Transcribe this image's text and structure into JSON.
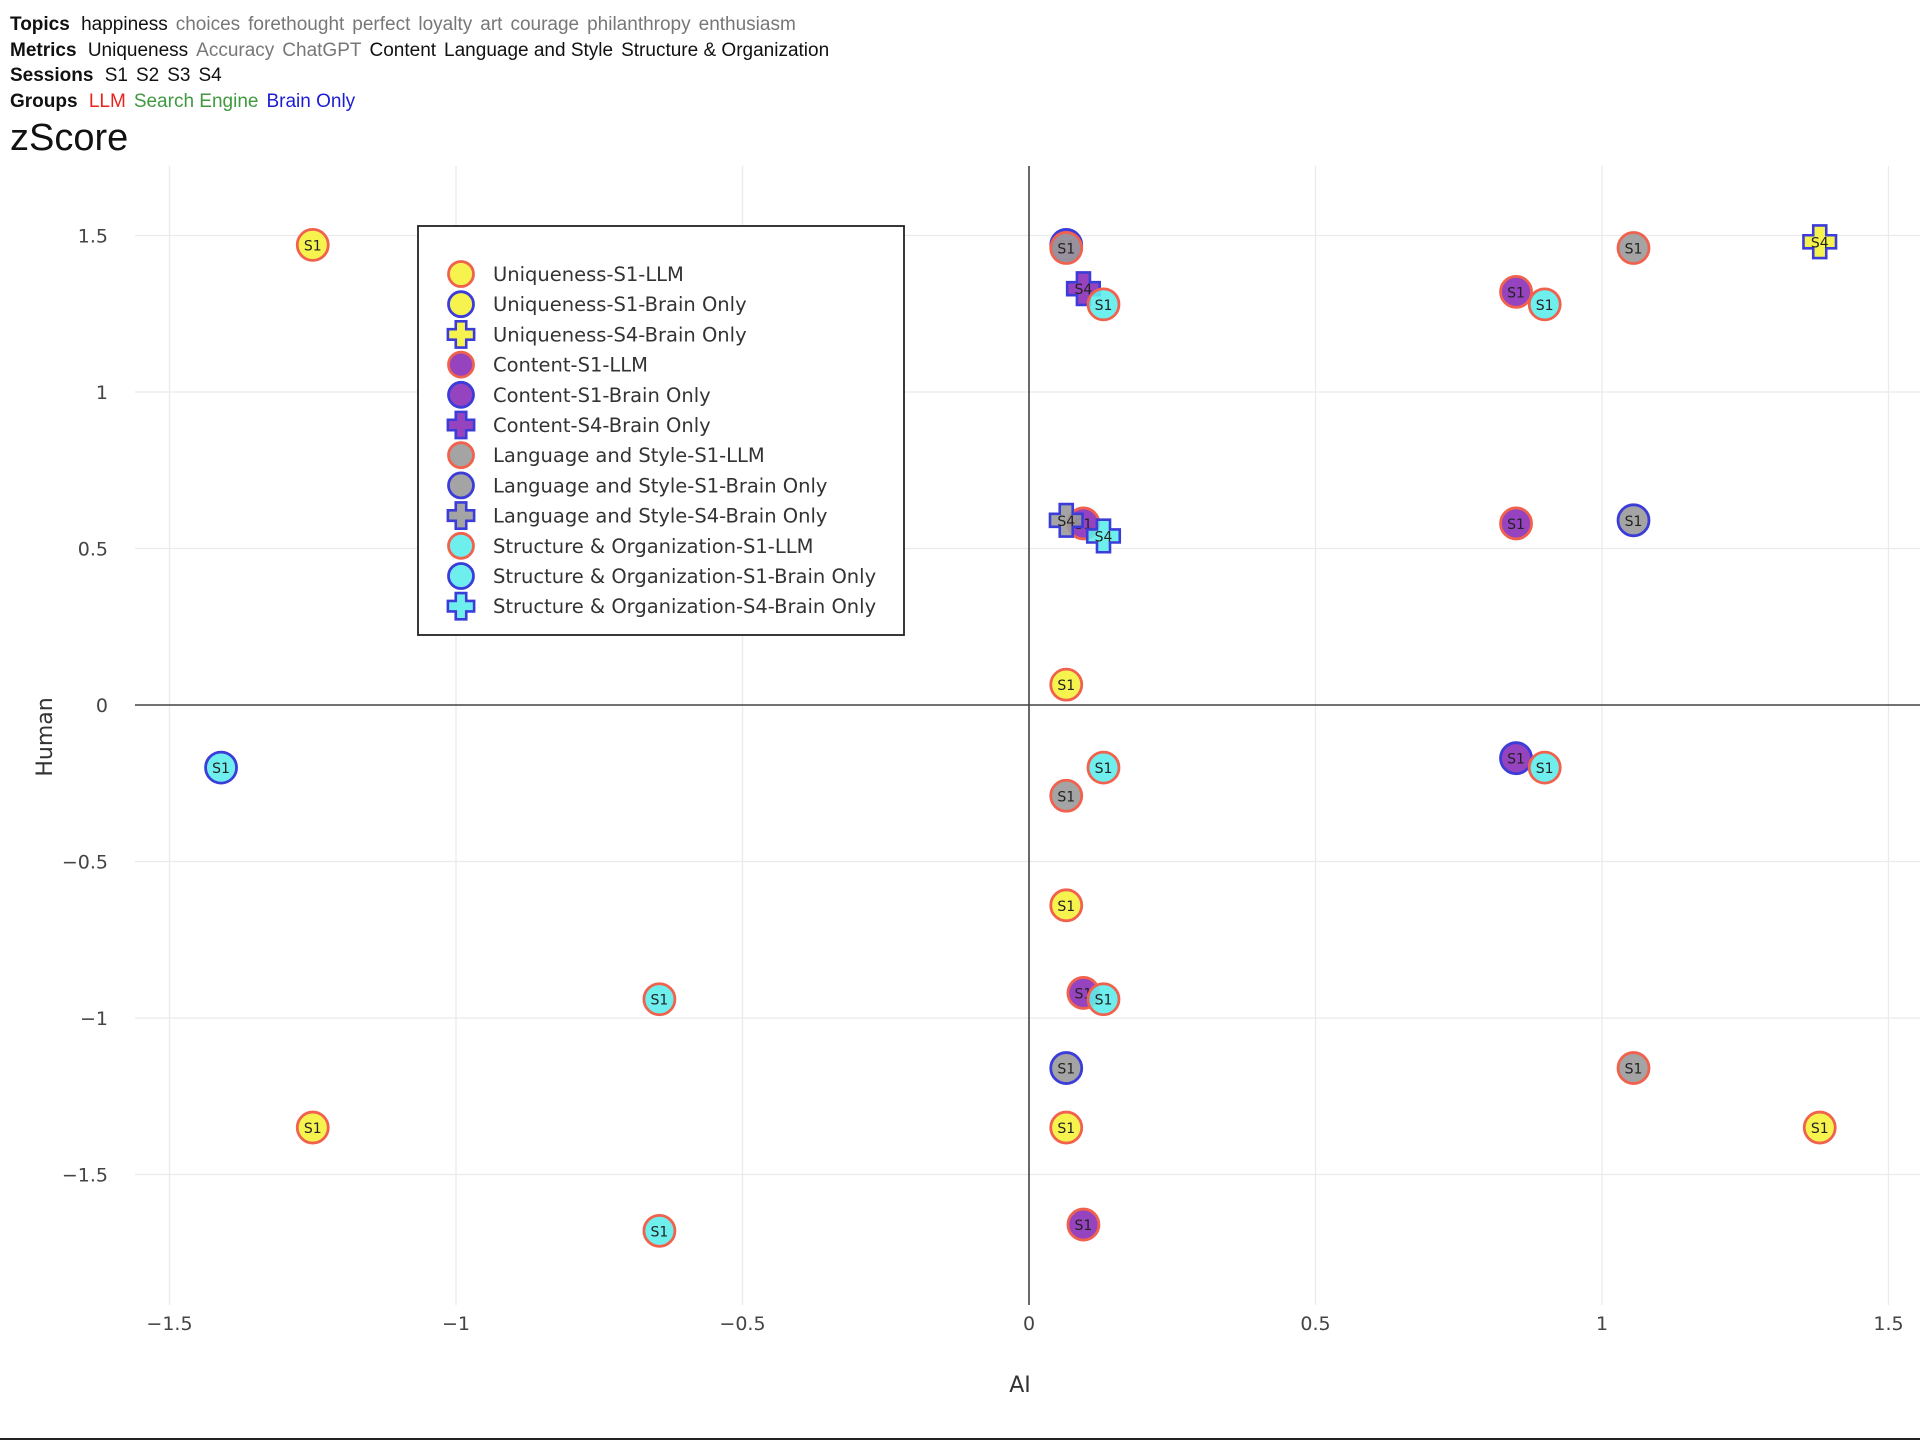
{
  "filters": {
    "topics": {
      "label": "Topics",
      "items": [
        {
          "text": "happiness",
          "active": true
        },
        {
          "text": "choices",
          "active": false
        },
        {
          "text": "forethought",
          "active": false
        },
        {
          "text": "perfect",
          "active": false
        },
        {
          "text": "loyalty",
          "active": false
        },
        {
          "text": "art",
          "active": false
        },
        {
          "text": "courage",
          "active": false
        },
        {
          "text": "philanthropy",
          "active": false
        },
        {
          "text": "enthusiasm",
          "active": false
        }
      ]
    },
    "metrics": {
      "label": "Metrics",
      "items": [
        {
          "text": "Uniqueness",
          "active": true
        },
        {
          "text": "Accuracy",
          "active": false
        },
        {
          "text": "ChatGPT",
          "active": false
        },
        {
          "text": "Content",
          "active": true
        },
        {
          "text": "Language and Style",
          "active": true
        },
        {
          "text": "Structure & Organization",
          "active": true
        }
      ]
    },
    "sessions": {
      "label": "Sessions",
      "items": [
        {
          "text": "S1",
          "active": true
        },
        {
          "text": "S2",
          "active": true
        },
        {
          "text": "S3",
          "active": true
        },
        {
          "text": "S4",
          "active": true
        }
      ]
    },
    "groups": {
      "label": "Groups",
      "items": [
        {
          "text": "LLM",
          "color": "#e8251c"
        },
        {
          "text": "Search Engine",
          "color": "#3f9a3f"
        },
        {
          "text": "Brain Only",
          "color": "#1c1cd4"
        }
      ]
    }
  },
  "chart_data": {
    "type": "scatter",
    "title": "zScore",
    "xlabel": "AI",
    "ylabel": "Human",
    "xlim": [
      -1.5,
      1.5
    ],
    "ylim": [
      -1.5,
      1.5
    ],
    "xticks": [
      "−1.5",
      "−1",
      "−0.5",
      "0",
      "0.5",
      "1",
      "1.5"
    ],
    "yticks": [
      "1.5",
      "1",
      "0.5",
      "0",
      "−0.5",
      "−1",
      "−1.5"
    ],
    "grid": true,
    "legend_position": "top-left",
    "metric_colors": {
      "Uniqueness": "#f5f23c",
      "Content": "#8b2fb8",
      "Language and Style": "#9a9a9a",
      "Structure & Organization": "#5fecec"
    },
    "group_outline_colors": {
      "LLM": "#f0624d",
      "Brain Only": "#3c3cd8"
    },
    "series": [
      {
        "name": "Uniqueness-S1-LLM",
        "metric": "Uniqueness",
        "group": "LLM",
        "symbol": "circle",
        "label": "S1",
        "points": [
          [
            -1.25,
            1.47
          ],
          [
            0.065,
            0.065
          ],
          [
            0.065,
            -0.64
          ],
          [
            -1.25,
            -1.35
          ],
          [
            0.065,
            -1.35
          ],
          [
            1.38,
            -1.35
          ]
        ]
      },
      {
        "name": "Uniqueness-S1-Brain Only",
        "metric": "Uniqueness",
        "group": "Brain Only",
        "symbol": "circle",
        "label": "S1",
        "points": []
      },
      {
        "name": "Uniqueness-S4-Brain Only",
        "metric": "Uniqueness",
        "group": "Brain Only",
        "symbol": "cross",
        "label": "S4",
        "points": [
          [
            1.38,
            1.48
          ]
        ]
      },
      {
        "name": "Content-S1-LLM",
        "metric": "Content",
        "group": "LLM",
        "symbol": "circle",
        "label": "S1",
        "points": [
          [
            0.85,
            1.32
          ],
          [
            0.85,
            0.58
          ],
          [
            0.095,
            0.58
          ],
          [
            0.095,
            -0.92
          ],
          [
            0.095,
            -1.66
          ]
        ]
      },
      {
        "name": "Content-S1-Brain Only",
        "metric": "Content",
        "group": "Brain Only",
        "symbol": "circle",
        "label": "S1",
        "points": [
          [
            0.065,
            1.47
          ],
          [
            0.85,
            -0.17
          ]
        ]
      },
      {
        "name": "Content-S4-Brain Only",
        "metric": "Content",
        "group": "Brain Only",
        "symbol": "cross",
        "label": "S4",
        "points": [
          [
            0.095,
            1.33
          ]
        ]
      },
      {
        "name": "Language and Style-S1-LLM",
        "metric": "Language and Style",
        "group": "LLM",
        "symbol": "circle",
        "label": "S1",
        "points": [
          [
            0.065,
            1.46
          ],
          [
            1.055,
            1.46
          ],
          [
            0.065,
            -0.29
          ],
          [
            1.055,
            -1.16
          ]
        ]
      },
      {
        "name": "Language and Style-S1-Brain Only",
        "metric": "Language and Style",
        "group": "Brain Only",
        "symbol": "circle",
        "label": "S1",
        "points": [
          [
            1.055,
            0.59
          ],
          [
            0.065,
            -1.16
          ]
        ]
      },
      {
        "name": "Language and Style-S4-Brain Only",
        "metric": "Language and Style",
        "group": "Brain Only",
        "symbol": "cross",
        "label": "S4",
        "points": [
          [
            0.065,
            0.59
          ]
        ]
      },
      {
        "name": "Structure & Organization-S1-LLM",
        "metric": "Structure & Organization",
        "group": "LLM",
        "symbol": "circle",
        "label": "S1",
        "points": [
          [
            0.13,
            1.28
          ],
          [
            0.9,
            1.28
          ],
          [
            0.13,
            -0.2
          ],
          [
            0.9,
            -0.2
          ],
          [
            -0.645,
            -0.94
          ],
          [
            0.13,
            -0.94
          ],
          [
            -0.645,
            -1.68
          ]
        ]
      },
      {
        "name": "Structure & Organization-S1-Brain Only",
        "metric": "Structure & Organization",
        "group": "Brain Only",
        "symbol": "circle",
        "label": "S1",
        "points": [
          [
            -1.41,
            -0.2
          ]
        ]
      },
      {
        "name": "Structure & Organization-S4-Brain Only",
        "metric": "Structure & Organization",
        "group": "Brain Only",
        "symbol": "cross",
        "label": "S4",
        "points": [
          [
            0.13,
            0.54
          ]
        ]
      }
    ]
  }
}
